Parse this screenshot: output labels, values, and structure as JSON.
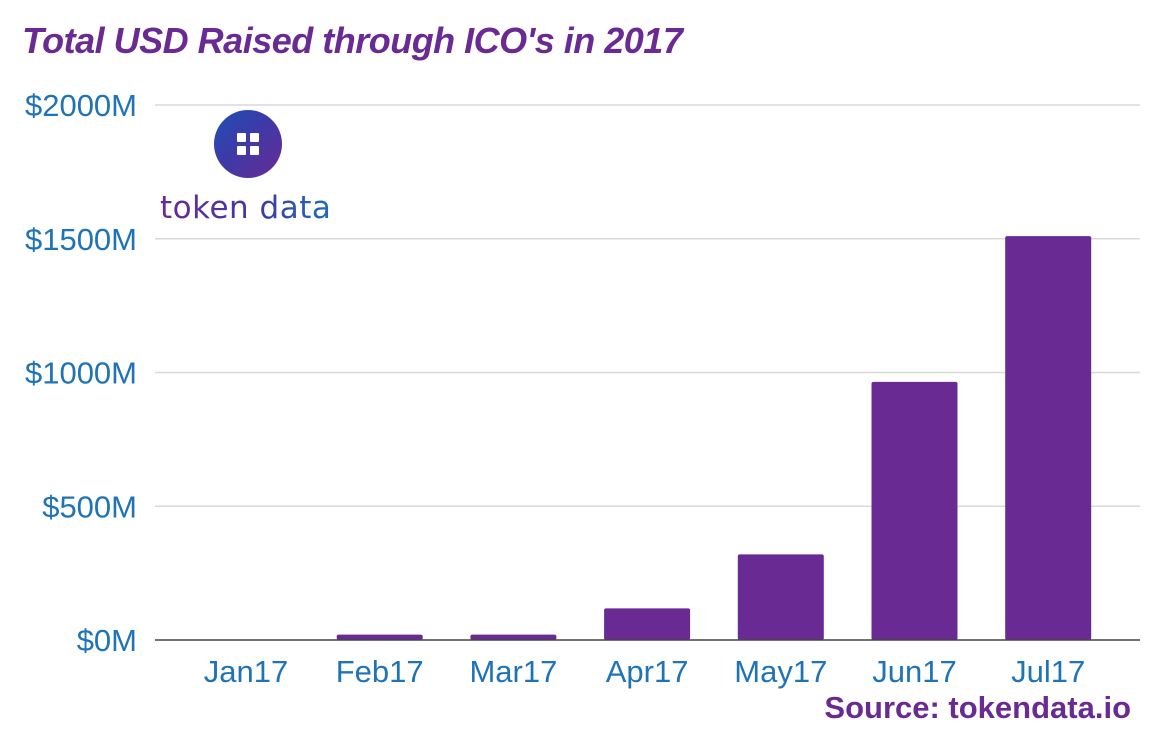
{
  "logo": {
    "text": "token data"
  },
  "source": "Source: tokendata.io",
  "colors": {
    "bar": "#6a2a93",
    "axis_text": "#1f73b7",
    "grid": "#d9d9d9",
    "title": "#6a2a93"
  },
  "chart_data": {
    "type": "bar",
    "title": "Total USD Raised through ICO's in 2017",
    "categories": [
      "Jan17",
      "Feb17",
      "Mar17",
      "Apr17",
      "May17",
      "Jun17",
      "Jul17"
    ],
    "values": [
      0,
      20,
      20,
      118,
      320,
      965,
      1510
    ],
    "ylim": [
      0,
      2000
    ],
    "yticks": [
      0,
      500,
      1000,
      1500,
      2000
    ],
    "ytick_labels": [
      "$0M",
      "$500M",
      "$1000M",
      "$1500M",
      "$2000M"
    ],
    "xlabel": "",
    "ylabel": "",
    "grid": true,
    "legend": false
  }
}
